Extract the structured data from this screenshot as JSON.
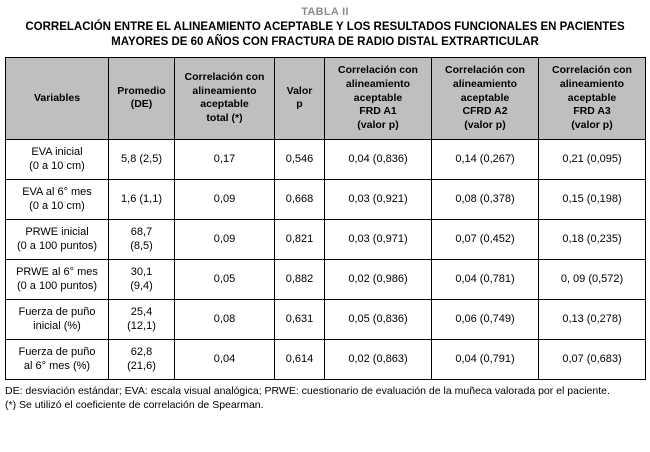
{
  "title": "TABLA II",
  "subtitle": "CORRELACIÓN ENTRE EL ALINEAMIENTO ACEPTABLE Y LOS RESULTADOS FUNCIONALES EN PACIENTES MAYORES DE 60 AÑOS CON FRACTURA DE RADIO DISTAL EXTRARTICULAR",
  "colors": {
    "header_background": "#bfbfbf",
    "border": "#000000",
    "title_gray": "#8c8c8c"
  },
  "table": {
    "headers": [
      "Variables",
      "Promedio\n(DE)",
      "Correlación con\nalineamiento\naceptable\ntotal (*)",
      "Valor\np",
      "Correlación con\nalineamiento\naceptable\nFRD A1\n(valor p)",
      "Correlación con\nalineamiento\naceptable\nCFRD A2\n(valor p)",
      "Correlación con\nalineamiento\naceptable\nFRD A3\n(valor p)"
    ],
    "rows": [
      [
        "EVA inicial\n(0 a 10 cm)",
        "5,8 (2,5)",
        "0,17",
        "0,546",
        "0,04 (0,836)",
        "0,14 (0,267)",
        "0,21 (0,095)"
      ],
      [
        "EVA al 6° mes\n(0 a 10 cm)",
        "1,6 (1,1)",
        "0,09",
        "0,668",
        "0,03 (0,921)",
        "0,08 (0,378)",
        "0,15 (0,198)"
      ],
      [
        "PRWE inicial\n(0 a 100 puntos)",
        "68,7\n(8,5)",
        "0,09",
        "0,821",
        "0,03 (0,971)",
        "0,07 (0,452)",
        "0,18 (0,235)"
      ],
      [
        "PRWE al 6° mes\n(0 a 100 puntos)",
        "30,1\n(9,4)",
        "0,05",
        "0,882",
        "0,02 (0,986)",
        "0,04 (0,781)",
        "0, 09 (0,572)"
      ],
      [
        "Fuerza de puño\ninicial (%)",
        "25,4\n(12,1)",
        "0,08",
        "0,631",
        "0,05 (0,836)",
        "0,06 (0,749)",
        "0,13 (0,278)"
      ],
      [
        "Fuerza de puño\nal 6° mes (%)",
        "62,8\n(21,6)",
        "0,04",
        "0,614",
        "0,02 (0,863)",
        "0,04 (0,791)",
        "0,07 (0,683)"
      ]
    ]
  },
  "footnotes": [
    "DE: desviación estándar; EVA: escala visual analógica; PRWE: cuestionario de evaluación de la muñeca valorada por el paciente.",
    "(*) Se utilizó el coeficiente de correlación de Spearman."
  ]
}
